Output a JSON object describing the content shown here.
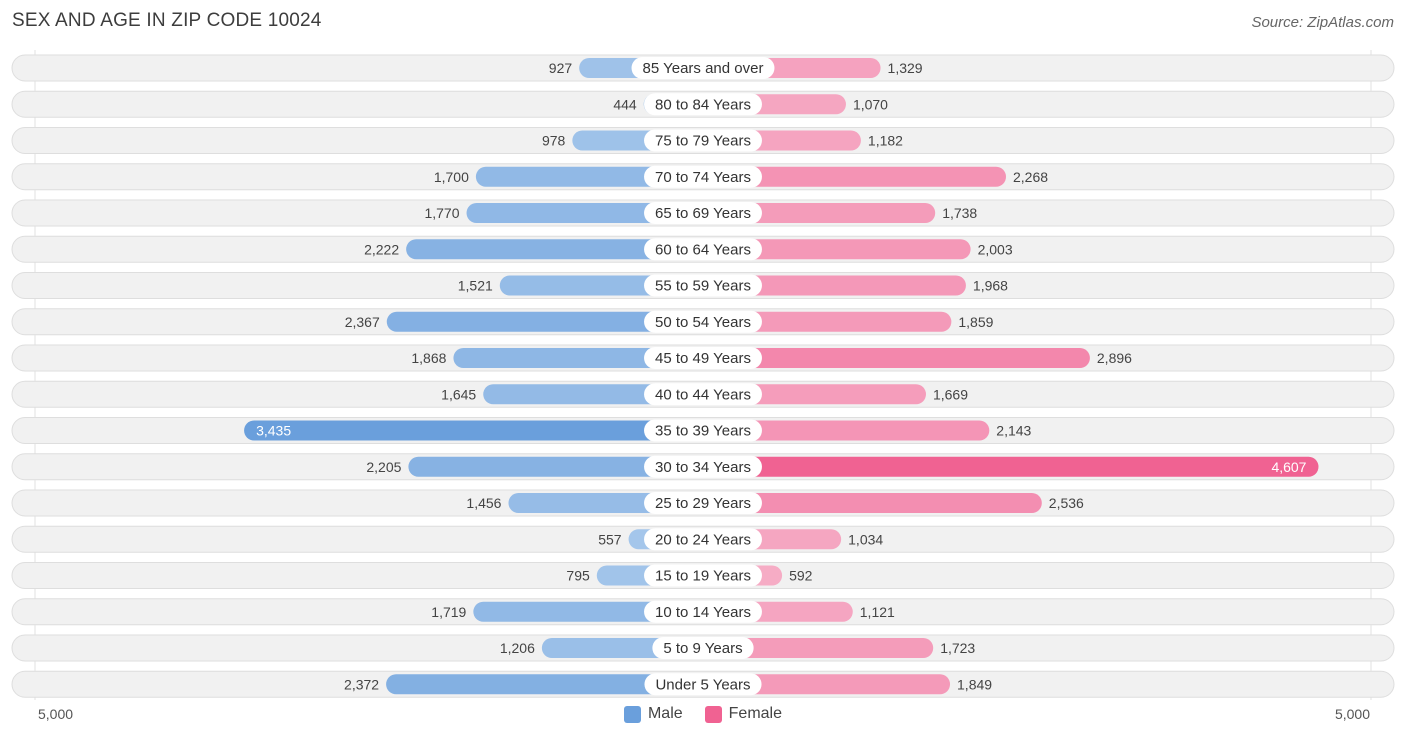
{
  "title": "SEX AND AGE IN ZIP CODE 10024",
  "source": "Source: ZipAtlas.com",
  "colors": {
    "male_light": "#a9c9ec",
    "male_dark": "#6a9fdc",
    "female_light": "#f6b0c8",
    "female_dark": "#f06292",
    "row_background": "#f1f1f1"
  },
  "chart_data": {
    "type": "bar",
    "orientation": "horizontal-diverging",
    "title": "SEX AND AGE IN ZIP CODE 10024",
    "categories": [
      "85 Years and over",
      "80 to 84 Years",
      "75 to 79 Years",
      "70 to 74 Years",
      "65 to 69 Years",
      "60 to 64 Years",
      "55 to 59 Years",
      "50 to 54 Years",
      "45 to 49 Years",
      "40 to 44 Years",
      "35 to 39 Years",
      "30 to 34 Years",
      "25 to 29 Years",
      "20 to 24 Years",
      "15 to 19 Years",
      "10 to 14 Years",
      "5 to 9 Years",
      "Under 5 Years"
    ],
    "series": [
      {
        "name": "Male",
        "values": [
          927,
          444,
          978,
          1700,
          1770,
          2222,
          1521,
          2367,
          1868,
          1645,
          3435,
          2205,
          1456,
          557,
          795,
          1719,
          1206,
          2372
        ]
      },
      {
        "name": "Female",
        "values": [
          1329,
          1070,
          1182,
          2268,
          1738,
          2003,
          1968,
          1859,
          2896,
          1669,
          2143,
          4607,
          2536,
          1034,
          592,
          1121,
          1723,
          1849
        ]
      }
    ],
    "value_labels": {
      "male": [
        "927",
        "444",
        "978",
        "1,700",
        "1,770",
        "2,222",
        "1,521",
        "2,367",
        "1,868",
        "1,645",
        "3,435",
        "2,205",
        "1,456",
        "557",
        "795",
        "1,719",
        "1,206",
        "2,372"
      ],
      "female": [
        "1,329",
        "1,070",
        "1,182",
        "2,268",
        "1,738",
        "2,003",
        "1,968",
        "1,859",
        "2,896",
        "1,669",
        "2,143",
        "4,607",
        "2,536",
        "1,034",
        "592",
        "1,121",
        "1,723",
        "1,849"
      ]
    },
    "xlim": [
      -5000,
      5000
    ],
    "axis_tick_labels": {
      "left": "5,000",
      "right": "5,000"
    },
    "legend": {
      "position": "bottom-center",
      "entries": [
        "Male",
        "Female"
      ]
    },
    "grid": true
  }
}
